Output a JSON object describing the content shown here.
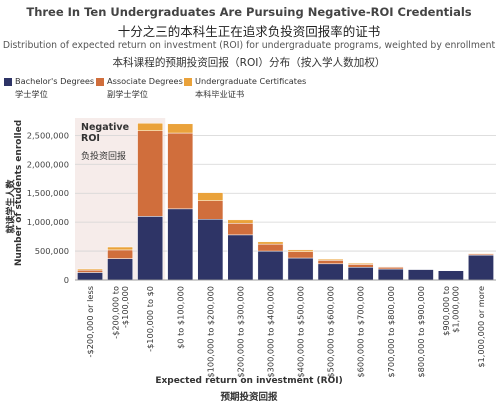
{
  "titles": {
    "main_en": "Three In Ten Undergraduates Are Pursuing Negative-ROI Credentials",
    "main_zh": "十分之三的本科生正在追求负投资回报率的证书",
    "sub_en": "Distribution of expected return on investment (ROI) for undergraduate programs, weighted by enrollment",
    "sub_zh": "本科课程的预期投资回报（ROI）分布（按入学人数加权）"
  },
  "legend": [
    {
      "en": "Bachelor's Degrees",
      "zh": "学士学位",
      "color": "#2e3466"
    },
    {
      "en": "Associate Degrees",
      "zh": "副学士学位",
      "color": "#d06e3c"
    },
    {
      "en": "Undergraduate Certificates",
      "zh": "本科毕业证书",
      "color": "#eaa23a"
    }
  ],
  "chart_data": {
    "type": "bar",
    "stacked": true,
    "xlabel": "Expected return on investment (ROI)",
    "xlabel_zh": "预期投资回报",
    "ylabel": "Number of students enrolled",
    "ylabel_zh": "就读学生人数",
    "ylim": [
      0,
      2800000
    ],
    "yticks": [
      0,
      500000,
      1000000,
      1500000,
      2000000,
      2500000
    ],
    "ytick_labels": [
      "0",
      "500,000",
      "1,000,000",
      "1,500,000",
      "2,000,000",
      "2,500,000"
    ],
    "grid": true,
    "categories": [
      "-$200,000 or less",
      "-$200,000 to -$100,000",
      "-$100,000 to $0",
      "$0 to $100,000",
      "$100,000 to $200,000",
      "$200,000 to $300,000",
      "$300,000 to $400,000",
      "$400,000 to $500,000",
      "$500,000 to $600,000",
      "$600,000 to $700,000",
      "$700,000 to $800,000",
      "$800,000 to $900,000",
      "$900,000 to $1,000,000",
      "$1,000,000 or more"
    ],
    "category_lines": [
      [
        "-$200,000 or less"
      ],
      [
        "-$200,000 to",
        "-$100,000"
      ],
      [
        "-$100,000 to $0"
      ],
      [
        "$0 to $100,000"
      ],
      [
        "$100,000 to $200,000"
      ],
      [
        "$200,000 to $300,000"
      ],
      [
        "$300,000 to $400,000"
      ],
      [
        "$400,000 to $500,000"
      ],
      [
        "$500,000 to $600,000"
      ],
      [
        "$600,000 to $700,000"
      ],
      [
        "$700,000 to $800,000"
      ],
      [
        "$800,000 to $900,000"
      ],
      [
        "$900,000 to",
        "$1,000,000"
      ],
      [
        "$1,000,000 or more"
      ]
    ],
    "series": [
      {
        "name": "Bachelor's Degrees",
        "color": "#2e3466",
        "values": [
          130000,
          370000,
          1100000,
          1230000,
          1050000,
          780000,
          500000,
          380000,
          280000,
          220000,
          190000,
          180000,
          160000,
          430000
        ]
      },
      {
        "name": "Associate Degrees",
        "color": "#d06e3c",
        "values": [
          40000,
          150000,
          1480000,
          1310000,
          320000,
          200000,
          120000,
          110000,
          60000,
          50000,
          30000,
          0,
          0,
          20000
        ]
      },
      {
        "name": "Undergraduate Certificates",
        "color": "#eaa23a",
        "values": [
          20000,
          50000,
          130000,
          160000,
          140000,
          60000,
          40000,
          30000,
          20000,
          20000,
          10000,
          0,
          0,
          10000
        ]
      }
    ],
    "annotation": {
      "en": "Negative ROI",
      "en_lines": [
        "Negative",
        "ROI"
      ],
      "zh": "负投资回报"
    }
  }
}
